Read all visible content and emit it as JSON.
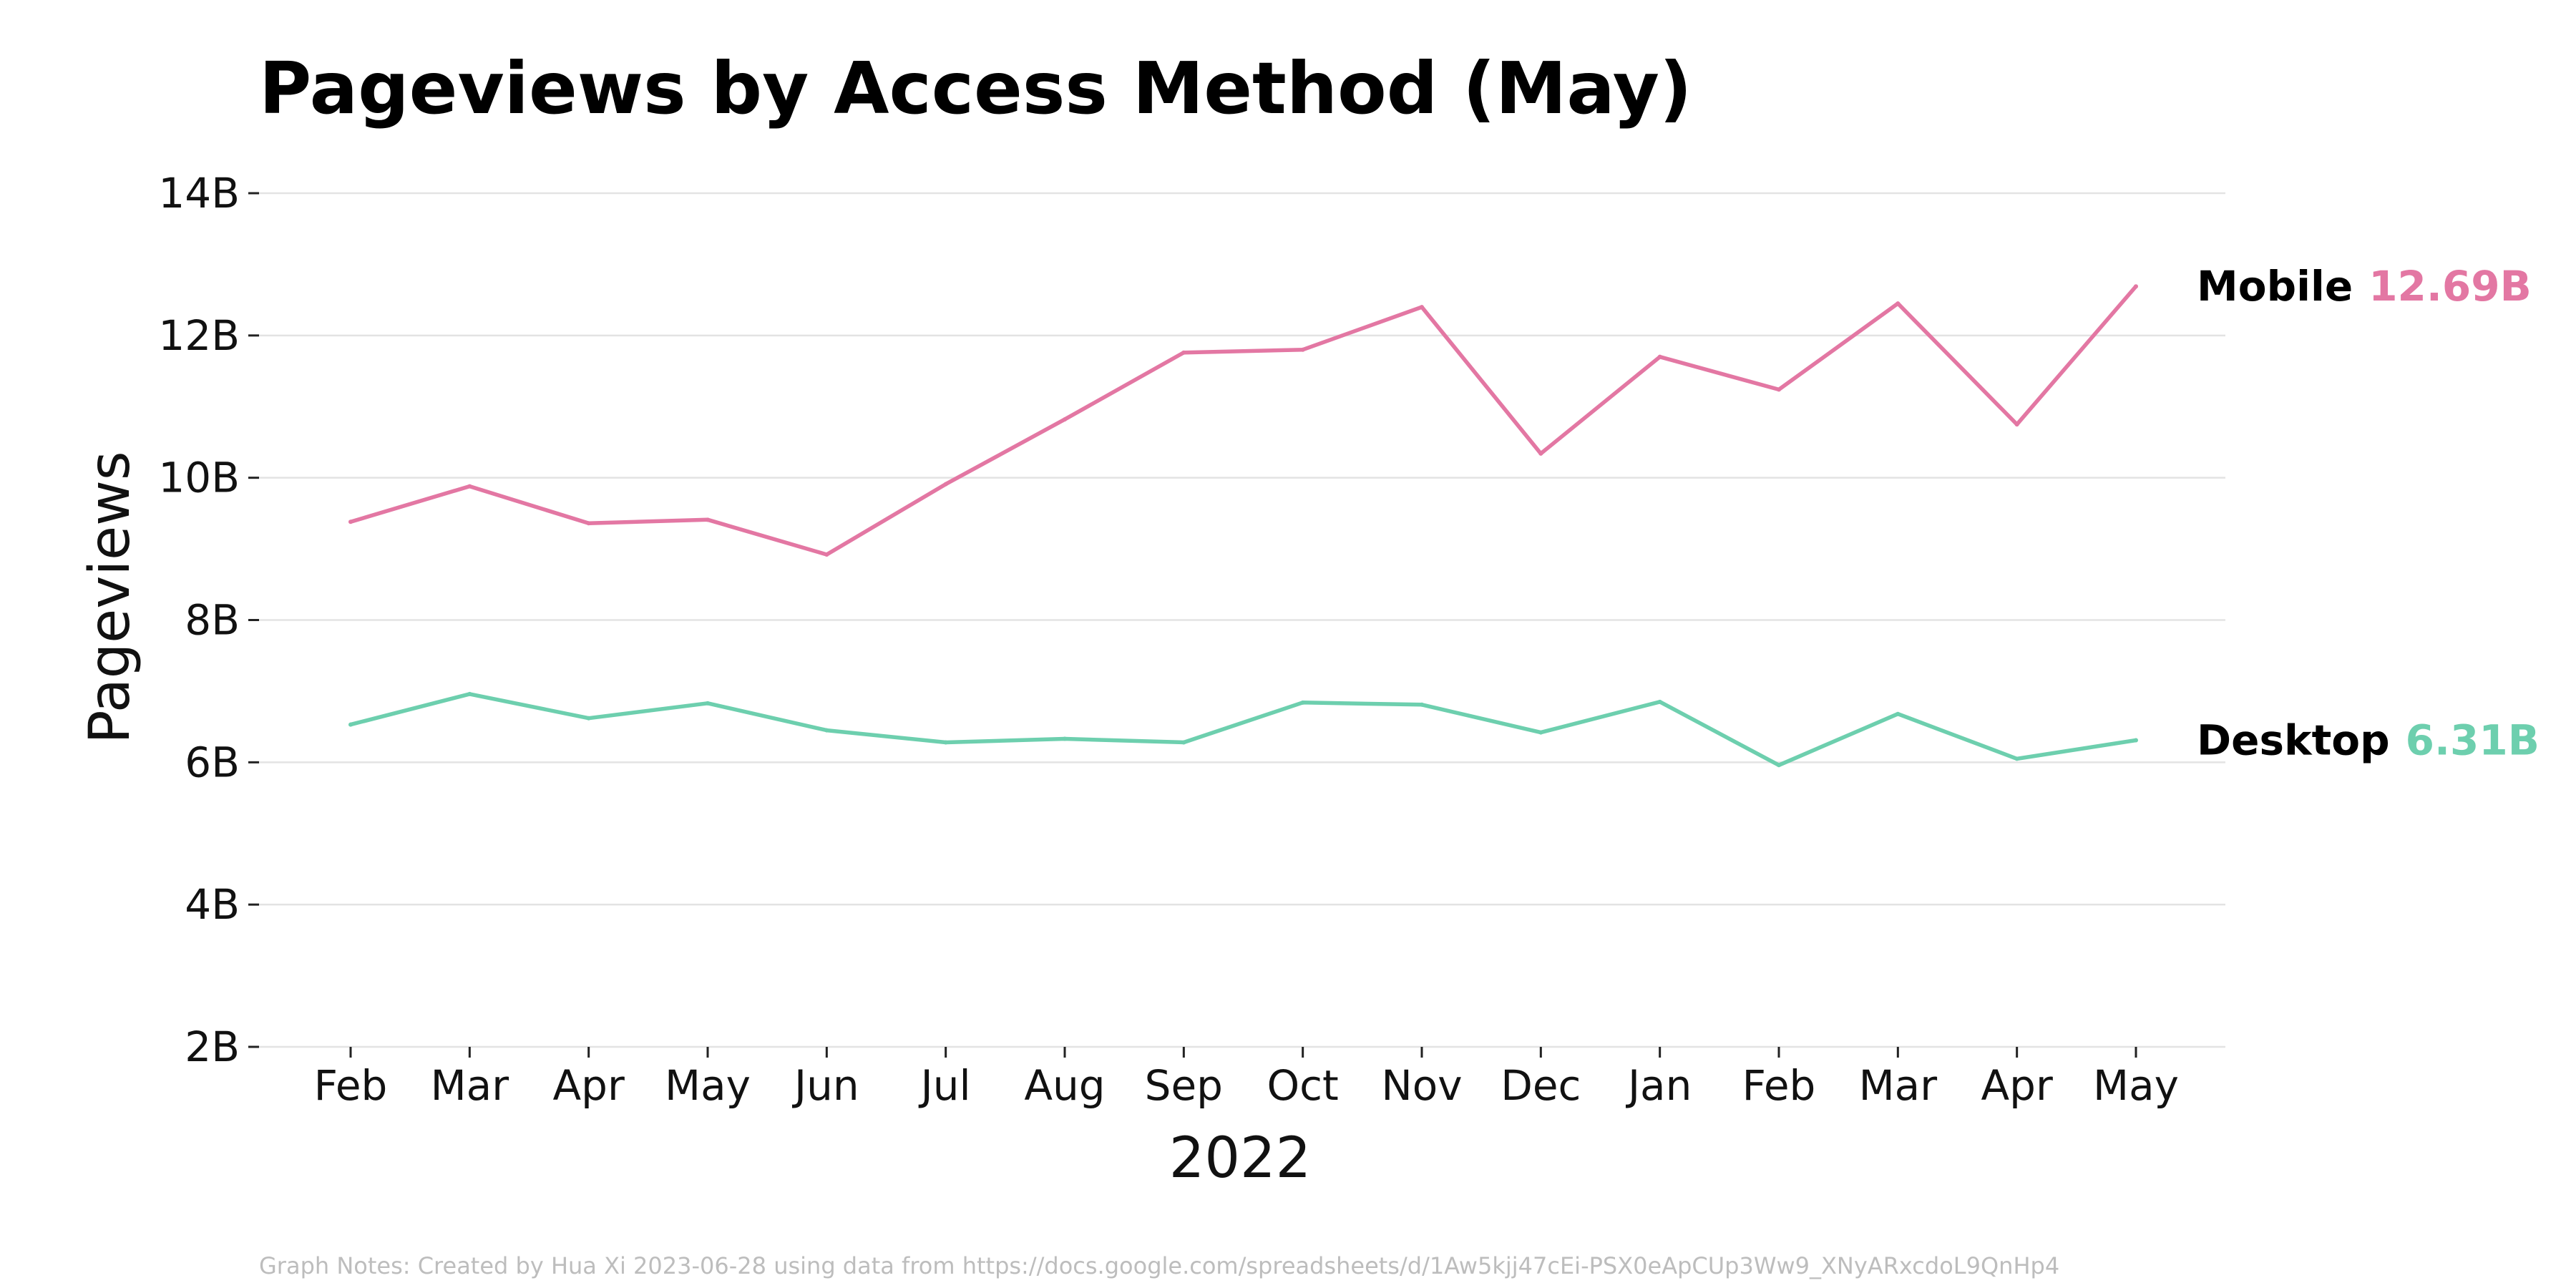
{
  "chart_data": {
    "type": "line",
    "title": "Pageviews by Access Method (May)",
    "xlabel": "2022",
    "ylabel": "Pageviews",
    "categories": [
      "Feb",
      "Mar",
      "Apr",
      "May",
      "Jun",
      "Jul",
      "Aug",
      "Sep",
      "Oct",
      "Nov",
      "Dec",
      "Jan",
      "Feb",
      "Mar",
      "Apr",
      "May"
    ],
    "x_dates": [
      "2022-02",
      "2022-03",
      "2022-04",
      "2022-05",
      "2022-06",
      "2022-07",
      "2022-08",
      "2022-09",
      "2022-10",
      "2022-11",
      "2022-12",
      "2023-01",
      "2023-02",
      "2023-03",
      "2023-04",
      "2023-05"
    ],
    "y_ticks": [
      "2B",
      "4B",
      "6B",
      "8B",
      "10B",
      "12B",
      "14B"
    ],
    "y_tick_values": [
      2,
      4,
      6,
      8,
      10,
      12,
      14
    ],
    "y_unit": "billions",
    "ylim": [
      2,
      14
    ],
    "grid": true,
    "series": [
      {
        "name": "Mobile",
        "color": "#e377a3",
        "end_label": "12.69B",
        "values": [
          9.38,
          9.88,
          9.36,
          9.41,
          8.92,
          9.91,
          10.82,
          11.76,
          11.8,
          12.4,
          10.34,
          11.7,
          11.24,
          12.45,
          10.75,
          12.69
        ]
      },
      {
        "name": "Desktop",
        "color": "#6dcfae",
        "end_label": "6.31B",
        "values": [
          6.53,
          6.96,
          6.62,
          6.83,
          6.45,
          6.28,
          6.33,
          6.28,
          6.84,
          6.81,
          6.42,
          6.85,
          5.96,
          6.68,
          6.05,
          6.31
        ]
      }
    ]
  },
  "notes": "Graph Notes: Created by Hua Xi 2023-06-28 using data from https://docs.google.com/spreadsheets/d/1Aw5kjj47cEi-PSX0eApCUp3Ww9_XNyARxcdoL9QnHp4"
}
